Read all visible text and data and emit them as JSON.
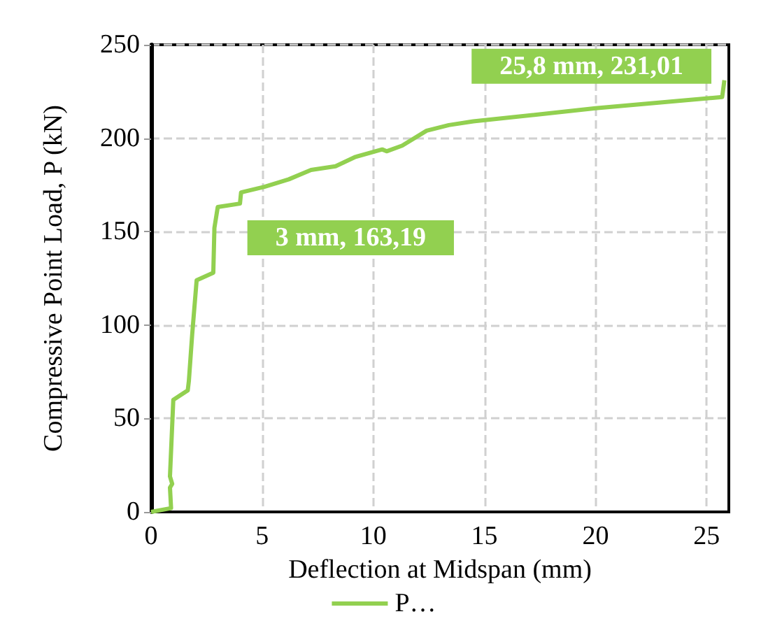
{
  "chart_data": {
    "type": "line",
    "xlabel": "Deflection at Midspan (mm)",
    "ylabel": "Compressive Point Load, P (kN)",
    "series": [
      {
        "name": "P…",
        "color": "#92d050",
        "x": [
          0,
          0.9,
          0.85,
          0.95,
          0.85,
          1.0,
          1.65,
          1.7,
          1.85,
          2.05,
          2.8,
          2.85,
          3.0,
          4.0,
          4.05,
          5.1,
          6.2,
          7.2,
          8.3,
          9.2,
          10.4,
          10.6,
          11.3,
          12.4,
          13.4,
          14.5,
          20.0,
          25.7,
          25.8
        ],
        "values": [
          0,
          2,
          13,
          15,
          19,
          60,
          65,
          70,
          95,
          124,
          128,
          152,
          163.19,
          165,
          171,
          174,
          178,
          183,
          185,
          190,
          194,
          193,
          196,
          204,
          207,
          209,
          216,
          222,
          231.01
        ]
      }
    ],
    "xlim": [
      0,
      26
    ],
    "xticks": [
      0,
      5,
      10,
      15,
      20,
      25
    ],
    "ylim": [
      0,
      250
    ],
    "yticks": [
      0,
      50,
      100,
      150,
      200,
      250
    ],
    "grid": true,
    "legend": "bottom",
    "marker": "none",
    "line_style": "solid",
    "annotations": [
      {
        "text": "3 mm, 163,19",
        "x": 3,
        "y": 163.19
      },
      {
        "text": "25,8 mm, 231,01",
        "x": 25.8,
        "y": 231.01
      }
    ]
  }
}
